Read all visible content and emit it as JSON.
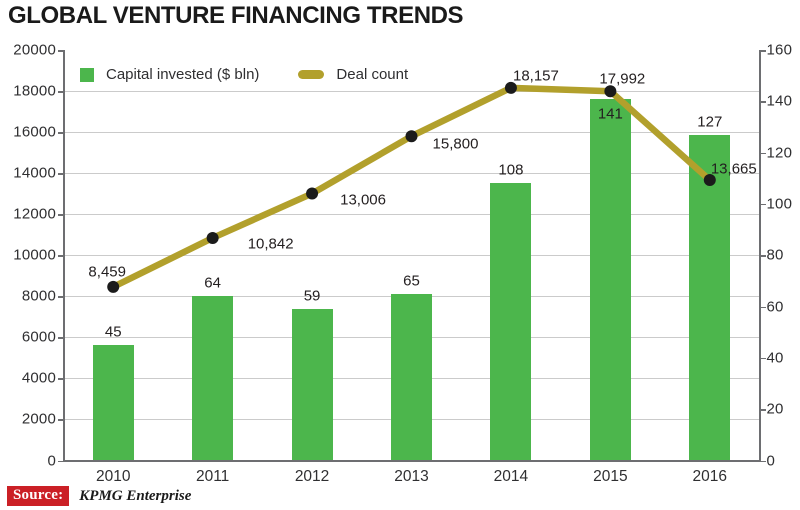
{
  "title": "GLOBAL VENTURE FINANCING TRENDS",
  "legend": {
    "capital_label": "Capital invested ($ bln)",
    "deals_label": "Deal count"
  },
  "source": {
    "label": "Source:",
    "text": "KPMG Enterprise"
  },
  "colors": {
    "bar_green": "#4cb64c",
    "line_olive": "#b2a02c",
    "marker_black": "#1b1b1b",
    "axis_gray": "#6d6e71",
    "grid_gray": "#cbcbcb",
    "source_red": "#cb2026",
    "text_dark": "#231f20"
  },
  "chart_data": {
    "type": "bar+line combo",
    "title": "GLOBAL VENTURE FINANCING TRENDS",
    "categories": [
      "2010",
      "2011",
      "2012",
      "2013",
      "2014",
      "2015",
      "2016"
    ],
    "series": [
      {
        "name": "Capital invested ($ bln)",
        "type": "bar",
        "axis": "right",
        "values": [
          45,
          64,
          59,
          65,
          108,
          141,
          127
        ],
        "labels": [
          "45",
          "64",
          "59",
          "65",
          "108",
          "141",
          "127"
        ]
      },
      {
        "name": "Deal count",
        "type": "line",
        "axis": "left",
        "values": [
          8459,
          10842,
          13006,
          15800,
          18157,
          17992,
          13665
        ],
        "labels": [
          "8,459",
          "10,842",
          "13,006",
          "15,800",
          "18,157",
          "17,992",
          "13,665"
        ]
      }
    ],
    "left_axis": {
      "min": 0,
      "max": 20000,
      "step": 2000,
      "ticks": [
        "20000",
        "18000",
        "16000",
        "14000",
        "12000",
        "10000",
        "8000",
        "6000",
        "4000",
        "2000",
        "0"
      ]
    },
    "right_axis": {
      "min": 0,
      "max": 160,
      "step": 20,
      "ticks": [
        "160",
        "140",
        "120",
        "100",
        "80",
        "60",
        "40",
        "20",
        "0"
      ]
    },
    "grid": true,
    "legend_position": "top-left",
    "source": "KPMG Enterprise"
  }
}
